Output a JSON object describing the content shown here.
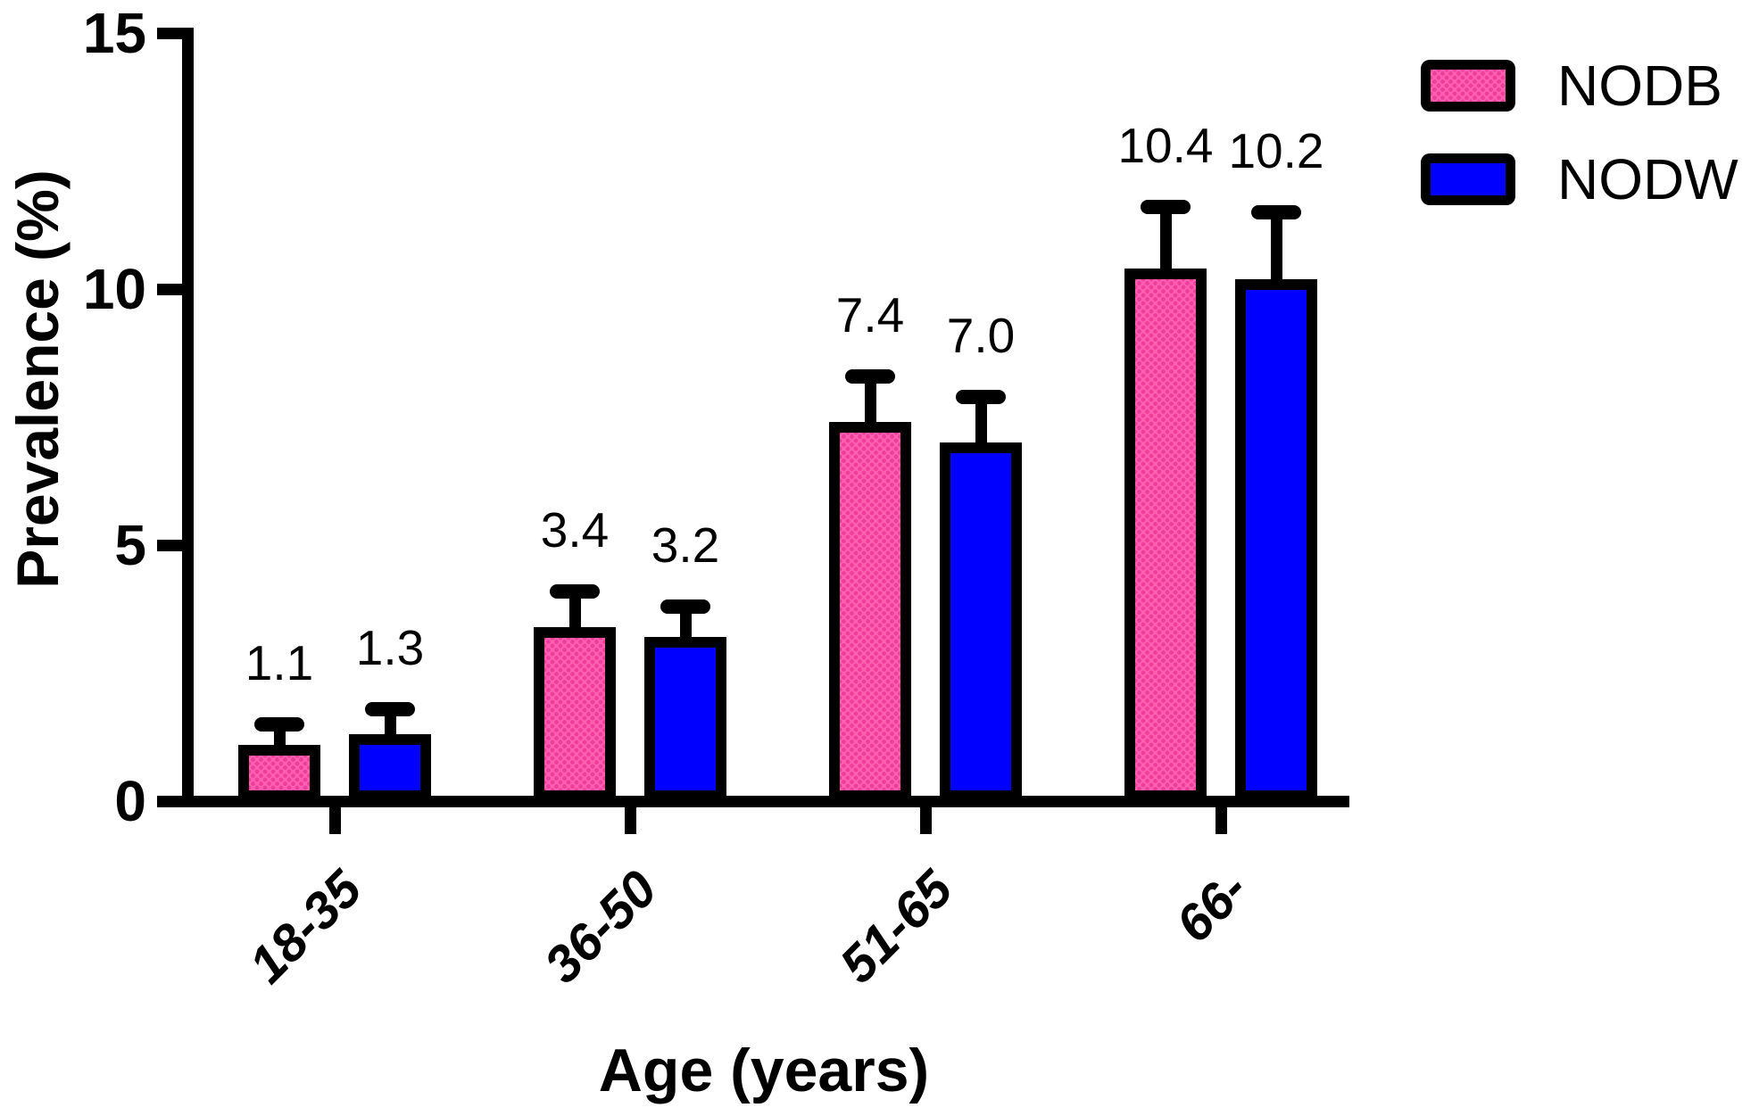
{
  "chart_data": {
    "type": "bar",
    "title": "",
    "xlabel": "Age (years)",
    "ylabel": "Prevalence (%)",
    "categories": [
      "18-35",
      "36-50",
      "51-65",
      "66-"
    ],
    "yticks": [
      0,
      5,
      10,
      15
    ],
    "ylim": [
      0,
      15
    ],
    "grid": false,
    "legend_position": "top-right",
    "axis_color": "#000000",
    "background_color": "#ffffff",
    "bar_value_labels_shown": true,
    "error_bars": "upper-only",
    "series": [
      {
        "name": "NODB",
        "color": "#ff5fae",
        "pattern": "dots",
        "pattern_dot_color": "#ee3d9c",
        "values": [
          1.1,
          3.4,
          7.4,
          10.4
        ],
        "errors_upper": [
          0.4,
          0.7,
          0.9,
          1.2
        ]
      },
      {
        "name": "NODW",
        "color": "#0000ff",
        "pattern": "solid",
        "values": [
          1.3,
          3.2,
          7.0,
          10.2
        ],
        "errors_upper": [
          0.5,
          0.6,
          0.9,
          1.3
        ]
      }
    ]
  }
}
